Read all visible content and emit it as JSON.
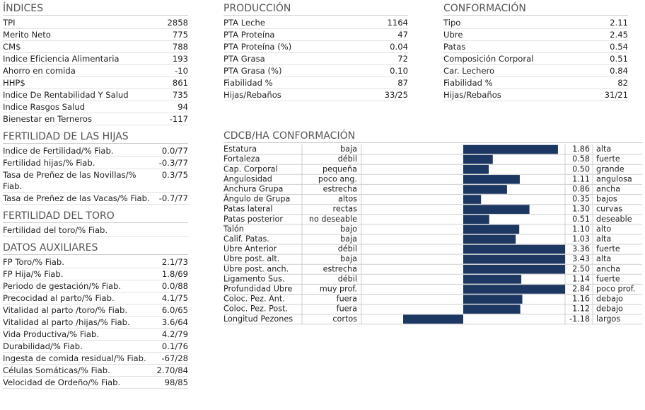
{
  "indices": {
    "title": "ÍNDICES",
    "rows": [
      [
        "TPI",
        "2858"
      ],
      [
        "Merito Neto",
        "775"
      ],
      [
        "CM$",
        "788"
      ],
      [
        "Indice Eficiencia Alimentaria",
        "193"
      ],
      [
        "Ahorro en comida",
        "-10"
      ],
      [
        "HHP$",
        "861"
      ],
      [
        "Indice De Rentabilidad Y Salud",
        "735"
      ],
      [
        "Indice Rasgos Salud",
        "94"
      ],
      [
        "Bienestar en Terneros",
        "-117"
      ]
    ]
  },
  "fertilidad_hijas": {
    "title": "FERTILIDAD DE LAS HIJAS",
    "rows": [
      [
        "Indice de Fertilidad/% Fiab.",
        "0.0/77"
      ],
      [
        "Fertilidad hijas/% Fiab.",
        "-0.3/77"
      ],
      [
        "Tasa de Preñez de las Novillas/% Fiab.",
        "0.3/75"
      ],
      [
        "Tasa de Preñez de las Vacas/% Fiab.",
        "-0.7/77"
      ]
    ]
  },
  "fertilidad_toro": {
    "title": "FERTILIDAD DEL TORO",
    "rows": [
      [
        "Fertilidad del toro/% Fiab."
      ]
    ]
  },
  "datos_auxiliares": {
    "title": "DATOS AUXILIARES",
    "rows": [
      [
        "FP Toro/% Fiab.",
        "2.1/73"
      ],
      [
        "FP Hija/% Fiab.",
        "1.8/69"
      ],
      [
        "Periodo de gestación/% Fiab.",
        "0.0/88"
      ],
      [
        "Precocidad al parto/% Fiab.",
        "4.1/75"
      ],
      [
        "Vitalidad al parto /toro/% Fiab.",
        "6.0/65"
      ],
      [
        "Vitalidad al parto /hijas/% Fiab.",
        "3.6/64"
      ],
      [
        "Vida Productiva/% Fiab.",
        "4.2/79"
      ],
      [
        "Durabilidad/% Fiab.",
        "0.1/76"
      ],
      [
        "Ingesta de comida residual/% Fiab.",
        "-67/28"
      ],
      [
        "Células Somáticas/% Fiab.",
        "2.70/84"
      ],
      [
        "Velocidad de Ordeño/% Fiab.",
        "98/85"
      ]
    ]
  },
  "produccion": {
    "title": "PRODUCCIÓN",
    "rows": [
      [
        "PTA Leche",
        "1164"
      ],
      [
        "PTA Proteína",
        "47"
      ],
      [
        "PTA Proteína (%)",
        "0.04"
      ],
      [
        "PTA Grasa",
        "72"
      ],
      [
        "PTA Grasa (%)",
        "0.10"
      ],
      [
        "Fiabilidad %",
        "87"
      ],
      [
        "Hijas/Rebaños",
        "33/25"
      ]
    ]
  },
  "conformacion": {
    "title": "CONFORMACIÓN",
    "rows": [
      [
        "Tipo",
        "2.11"
      ],
      [
        "Ubre",
        "2.45"
      ],
      [
        "Patas",
        "0.54"
      ],
      [
        "Composición Corporal",
        "0.51"
      ],
      [
        "Car. Lechero",
        "0.84"
      ],
      [
        "Fiabilidad %",
        "82"
      ],
      [
        "Hijas/Rebaños",
        "31/21"
      ]
    ]
  },
  "cdcb": {
    "title": "CDCB/HA CONFORMACIÓN",
    "xlim": [
      -2,
      2
    ],
    "color": "#1c3761",
    "rows": [
      {
        "trait": "Estatura",
        "low": "baja",
        "value": 1.86,
        "value_label": "1.86",
        "high": "alta"
      },
      {
        "trait": "Fortaleza",
        "low": "débil",
        "value": 0.58,
        "value_label": "0.58",
        "high": "fuerte"
      },
      {
        "trait": "Cap. Corporal",
        "low": "pequeña",
        "value": 0.5,
        "value_label": "0.50",
        "high": "grande"
      },
      {
        "trait": "Angulosidad",
        "low": "poco ang.",
        "value": 1.11,
        "value_label": "1.11",
        "high": "angulosa"
      },
      {
        "trait": "Anchura Grupa",
        "low": "estrecha",
        "value": 0.86,
        "value_label": "0.86",
        "high": "ancha"
      },
      {
        "trait": "Ángulo de Grupa",
        "low": "altos",
        "value": 0.35,
        "value_label": "0.35",
        "high": "bajos"
      },
      {
        "trait": "Patas lateral",
        "low": "rectas",
        "value": 1.3,
        "value_label": "1.30",
        "high": "curvas"
      },
      {
        "trait": "Patas posterior",
        "low": "no deseable",
        "value": 0.51,
        "value_label": "0.51",
        "high": "deseable"
      },
      {
        "trait": "Talón",
        "low": "bajo",
        "value": 1.1,
        "value_label": "1.10",
        "high": "alto"
      },
      {
        "trait": "Calif. Patas.",
        "low": "baja",
        "value": 1.03,
        "value_label": "1.03",
        "high": "alta"
      },
      {
        "trait": "Ubre Anterior",
        "low": "débil",
        "value": 3.36,
        "value_label": "3.36",
        "high": "fuerte"
      },
      {
        "trait": "Ubre post. alt.",
        "low": "baja",
        "value": 3.43,
        "value_label": "3.43",
        "high": "alta"
      },
      {
        "trait": "Ubre post. anch.",
        "low": "estrecha",
        "value": 2.5,
        "value_label": "2.50",
        "high": "ancha"
      },
      {
        "trait": "Ligamento Sus.",
        "low": "débil",
        "value": 1.14,
        "value_label": "1.14",
        "high": "fuerte"
      },
      {
        "trait": "Profundidad Ubre",
        "low": "muy prof.",
        "value": 2.84,
        "value_label": "2.84",
        "high": "poco prof."
      },
      {
        "trait": "Coloc. Pez. Ant.",
        "low": "fuera",
        "value": 1.16,
        "value_label": "1.16",
        "high": "debajo"
      },
      {
        "trait": "Coloc. Pez. Post.",
        "low": "fuera",
        "value": 1.12,
        "value_label": "1.12",
        "high": "debajo"
      },
      {
        "trait": "Longitud Pezones",
        "low": "cortos",
        "value": -1.18,
        "value_label": "-1.18",
        "high": "largos"
      }
    ]
  }
}
